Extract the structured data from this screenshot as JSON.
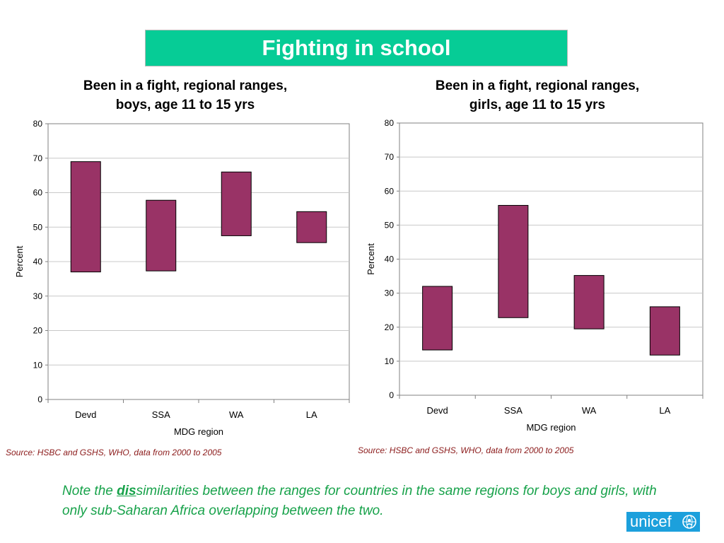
{
  "colors": {
    "banner": "#06cc96",
    "bar_fill": "#993366",
    "bar_stroke": "#000000",
    "source_text": "#8b1a1a",
    "note_text": "#17a24a",
    "logo_bg": "#1ca0dc"
  },
  "banner": {
    "title": "Fighting in school"
  },
  "charts": [
    {
      "title_line1": "Been in a fight, regional ranges,",
      "title_line2": "boys, age 11 to 15 yrs",
      "source": "Source: HSBC and GSHS, WHO, data from 2000 to 2005"
    },
    {
      "title_line1": "Been in a fight, regional ranges,",
      "title_line2": "girls, age 11 to 15 yrs",
      "source": "Source: HSBC and GSHS, WHO, data from 2000 to 2005"
    }
  ],
  "chart_data": [
    {
      "type": "bar",
      "subtype": "floating-range",
      "title": "Been in a fight, regional ranges, boys, age 11 to 15 yrs",
      "categories": [
        "Devd",
        "SSA",
        "WA",
        "LA"
      ],
      "series": [
        {
          "low": [
            37,
            37.3,
            47.5,
            45.5
          ],
          "high": [
            69,
            57.8,
            66,
            54.5
          ]
        }
      ],
      "xlabel": "MDG region",
      "ylabel": "Percent",
      "ylim": [
        0,
        80
      ],
      "yticks": [
        0,
        10,
        20,
        30,
        40,
        50,
        60,
        70,
        80
      ],
      "grid": true,
      "legend": "none"
    },
    {
      "type": "bar",
      "subtype": "floating-range",
      "title": "Been in a fight, regional ranges, girls, age 11 to 15 yrs",
      "categories": [
        "Devd",
        "SSA",
        "WA",
        "LA"
      ],
      "series": [
        {
          "low": [
            13.3,
            22.8,
            19.5,
            11.8
          ],
          "high": [
            32,
            55.8,
            35.2,
            26
          ]
        }
      ],
      "xlabel": "MDG region",
      "ylabel": "Percent",
      "ylim": [
        0,
        80
      ],
      "yticks": [
        0,
        10,
        20,
        30,
        40,
        50,
        60,
        70,
        80
      ],
      "grid": true,
      "legend": "none"
    }
  ],
  "note": {
    "prefix": "Note the ",
    "emphasis": "dis",
    "rest": "similarities between the ranges for countries in the same regions for boys and girls, with only sub-Saharan Africa overlapping between the two."
  },
  "logo": {
    "text": "unicef",
    "icon": "unicef-globe-icon"
  }
}
